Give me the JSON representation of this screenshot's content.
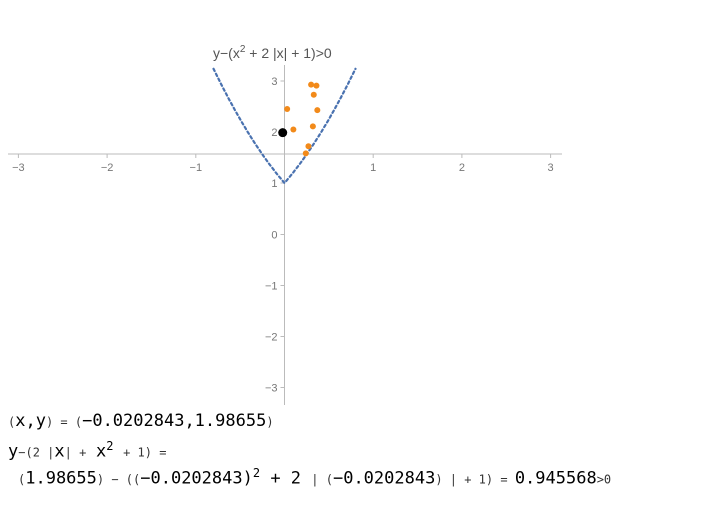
{
  "chart_data": {
    "type": "scatter",
    "title": "y-(x²+2 |x| +1)>0",
    "title_parts": {
      "a": "y−(x",
      "sup": "2",
      "b": " + 2 |x| + 1)>0"
    },
    "xlim": [
      -3,
      3
    ],
    "ylim_upper": [
      1,
      3.5
    ],
    "ylim_lower": [
      -3.5,
      0
    ],
    "x_ticks": [
      -3,
      -2,
      -1,
      1,
      2,
      3
    ],
    "x_tick_labels": [
      "−3",
      "−2",
      "−1",
      "1",
      "2",
      "3"
    ],
    "y_ticks_upper": [
      1,
      2,
      3
    ],
    "y_tick_labels_upper": [
      "1",
      "2",
      "3"
    ],
    "y_ticks_lower": [
      0,
      -1,
      -2,
      -3
    ],
    "y_tick_labels_lower": [
      "0",
      "−1",
      "−2",
      "−3"
    ],
    "boundary": {
      "function": "x^2 + 2|x| + 1",
      "x_range": [
        -0.8,
        0.8
      ],
      "style": "dotted",
      "color": "#4a72b0"
    },
    "series": [
      {
        "color": "#f28a1a",
        "points": [
          {
            "x": 0.03,
            "y": 2.45
          },
          {
            "x": 0.1,
            "y": 2.05
          },
          {
            "x": 0.3,
            "y": 2.93
          },
          {
            "x": 0.36,
            "y": 2.91
          },
          {
            "x": 0.33,
            "y": 2.73
          },
          {
            "x": 0.37,
            "y": 2.43
          },
          {
            "x": 0.32,
            "y": 2.11
          },
          {
            "x": 0.27,
            "y": 1.72
          },
          {
            "x": 0.24,
            "y": 1.58
          }
        ]
      },
      {
        "color": "#000000",
        "points": [
          {
            "x": -0.0202843,
            "y": 1.98655
          }
        ]
      }
    ],
    "grid": false
  },
  "equation": {
    "line1": {
      "paren_open": "(",
      "xy": "x,y",
      "paren_close": ")",
      "equals": " = (",
      "value": "−0.0202843,1.98655",
      "close": ")"
    },
    "line2": {
      "y": "y",
      "mid": "−(2 |",
      "x": "x",
      "mid2": "| +",
      "x2": "x",
      "sup": "2",
      "tail": "+ 1)",
      "eq": " ="
    },
    "line3": {
      "open": "(",
      "y_val": "1.98655",
      "mid": ") − ((",
      "x_val": "−0.0202843",
      "close_sq": ")",
      "sup": "2",
      "plus2": " + 2 ",
      "abs_open": "| (",
      "x_val2": "−0.0202843",
      "abs_close": ") | + 1)",
      "eq": " = ",
      "result": "0.945568",
      "gt": ">0"
    }
  }
}
